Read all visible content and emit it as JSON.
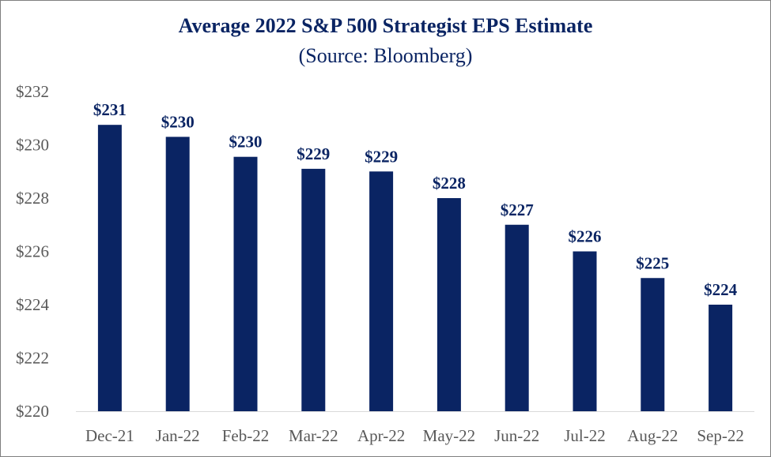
{
  "chart_data": {
    "type": "bar",
    "title": "Average 2022 S&P 500 Strategist EPS Estimate",
    "subtitle": "(Source: Bloomberg)",
    "categories": [
      "Dec-21",
      "Jan-22",
      "Feb-22",
      "Mar-22",
      "Apr-22",
      "May-22",
      "Jun-22",
      "Jul-22",
      "Aug-22",
      "Sep-22"
    ],
    "values": [
      230.75,
      230.3,
      229.55,
      229.1,
      229.0,
      228.0,
      227.0,
      226.0,
      225.0,
      224.0
    ],
    "data_labels": [
      "$231",
      "$230",
      "$230",
      "$229",
      "$229",
      "$228",
      "$227",
      "$226",
      "$225",
      "$224"
    ],
    "yticks": [
      220,
      222,
      224,
      226,
      228,
      230,
      232
    ],
    "ytick_labels": [
      "$220",
      "$222",
      "$224",
      "$226",
      "$228",
      "$230",
      "$232"
    ],
    "ylim": [
      220,
      232
    ],
    "xlabel": "",
    "ylabel": "",
    "grid": false,
    "bar_color": "#0a2463",
    "text_color": "#0a2463",
    "tick_color": "#595959"
  }
}
